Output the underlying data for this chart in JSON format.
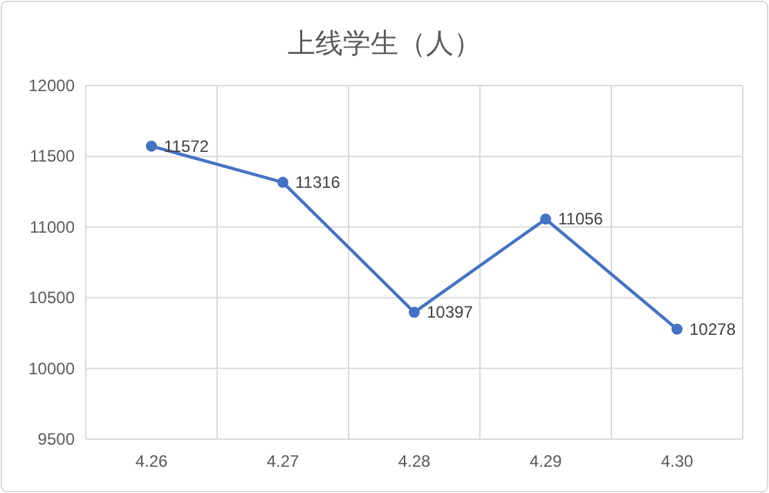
{
  "chart_data": {
    "type": "line",
    "title": "上线学生（人）",
    "categories": [
      "4.26",
      "4.27",
      "4.28",
      "4.29",
      "4.30"
    ],
    "values": [
      11572,
      11316,
      10397,
      11056,
      10278
    ],
    "color": "#4472c4",
    "ylim": [
      9500,
      12000
    ],
    "yticks": [
      9500,
      10000,
      10500,
      11000,
      11500,
      12000
    ],
    "grid": true,
    "marker": "circle",
    "data_labels": true
  }
}
